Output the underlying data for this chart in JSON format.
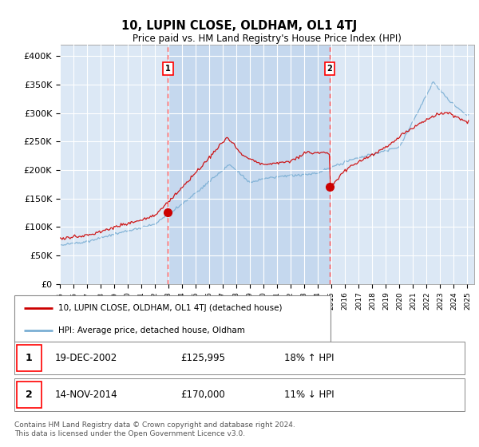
{
  "title": "10, LUPIN CLOSE, OLDHAM, OL1 4TJ",
  "subtitle": "Price paid vs. HM Land Registry's House Price Index (HPI)",
  "xlim_start": 1995.0,
  "xlim_end": 2025.5,
  "ylim_min": 0,
  "ylim_max": 420000,
  "yticks": [
    0,
    50000,
    100000,
    150000,
    200000,
    250000,
    300000,
    350000,
    400000
  ],
  "ytick_labels": [
    "£0",
    "£50K",
    "£100K",
    "£150K",
    "£200K",
    "£250K",
    "£300K",
    "£350K",
    "£400K"
  ],
  "xtick_years": [
    1995,
    1996,
    1997,
    1998,
    1999,
    2000,
    2001,
    2002,
    2003,
    2004,
    2005,
    2006,
    2007,
    2008,
    2009,
    2010,
    2011,
    2012,
    2013,
    2014,
    2015,
    2016,
    2017,
    2018,
    2019,
    2020,
    2021,
    2022,
    2023,
    2024,
    2025
  ],
  "marker1_x": 2002.96,
  "marker1_y": 125995,
  "marker1_label": "1",
  "marker1_date": "19-DEC-2002",
  "marker1_price": "£125,995",
  "marker1_hpi": "18% ↑ HPI",
  "marker2_x": 2014.87,
  "marker2_y": 170000,
  "marker2_label": "2",
  "marker2_date": "14-NOV-2014",
  "marker2_price": "£170,000",
  "marker2_hpi": "11% ↓ HPI",
  "legend_line1": "10, LUPIN CLOSE, OLDHAM, OL1 4TJ (detached house)",
  "legend_line2": "HPI: Average price, detached house, Oldham",
  "footer": "Contains HM Land Registry data © Crown copyright and database right 2024.\nThis data is licensed under the Open Government Licence v3.0.",
  "line_color_red": "#cc0000",
  "line_color_blue": "#7bafd4",
  "background_plot": "#dce8f5",
  "grid_color": "#ffffff",
  "vline_color": "#ff5555",
  "shade_color": "#c5d8ee"
}
